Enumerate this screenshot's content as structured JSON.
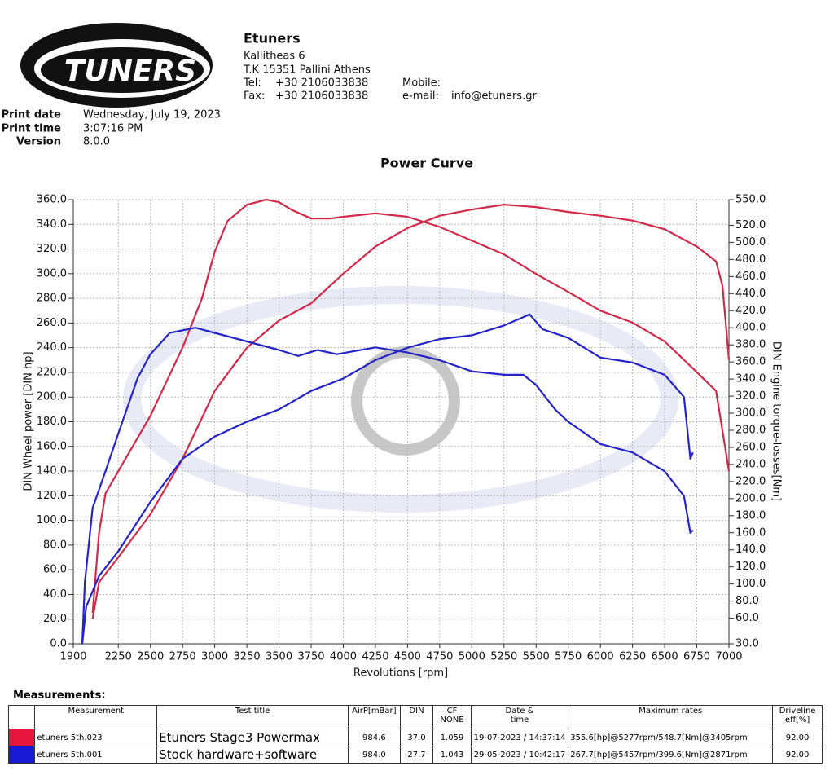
{
  "header": {
    "logo_text": "TUNERS",
    "company": "Etuners",
    "address_1": "Kallitheas 6",
    "address_2": "T.K 15351 Pallini Athens",
    "tel_label": "Tel:",
    "tel": "+30 2106033838",
    "fax_label": "Fax:",
    "fax": "+30 2106033838",
    "mobile_label": "Mobile:",
    "email_label": "e-mail:",
    "email": "info@etuners.gr",
    "print_date_label": "Print date",
    "print_date": "Wednesday, July 19, 2023",
    "print_time_label": "Print time",
    "print_time": "3:07:16 PM",
    "version_label": "Version",
    "version": "8.0.0"
  },
  "chart_data": {
    "type": "line",
    "title": "Power Curve",
    "x_label": "Revolutions [rpm]",
    "y_label": "DIN Wheel power [DIN hp]",
    "y2_label": "DIN Engine torque-losses[Nm]",
    "xlim": [
      1900,
      7000
    ],
    "xticks": [
      1900,
      2250,
      2500,
      2750,
      3000,
      3250,
      3500,
      3750,
      4000,
      4250,
      4500,
      4750,
      5000,
      5250,
      5500,
      5750,
      6000,
      6250,
      6500,
      6750,
      7000
    ],
    "ylim": [
      0,
      360
    ],
    "yticks": [
      {
        "value": 0,
        "label": "0.0"
      },
      {
        "value": 20,
        "label": "20.0"
      },
      {
        "value": 40,
        "label": "40.0"
      },
      {
        "value": 60,
        "label": "60.0"
      },
      {
        "value": 80,
        "label": "80.0"
      },
      {
        "value": 100,
        "label": "100.0"
      },
      {
        "value": 120,
        "label": "120.0"
      },
      {
        "value": 140,
        "label": "140.0"
      },
      {
        "value": 160,
        "label": "160.0"
      },
      {
        "value": 180,
        "label": "180.0"
      },
      {
        "value": 200,
        "label": "200.0"
      },
      {
        "value": 220,
        "label": "220.0"
      },
      {
        "value": 240,
        "label": "240.0"
      },
      {
        "value": 260,
        "label": "260.0"
      },
      {
        "value": 280,
        "label": "280.0"
      },
      {
        "value": 300,
        "label": "300.0"
      },
      {
        "value": 320,
        "label": "320.0"
      },
      {
        "value": 340,
        "label": "340.0"
      },
      {
        "value": 360,
        "label": "360.0"
      }
    ],
    "y2lim": [
      30,
      550
    ],
    "y2ticks": [
      {
        "value": 30,
        "label": "30.0"
      },
      {
        "value": 60,
        "label": "60.0"
      },
      {
        "value": 80,
        "label": "80.0"
      },
      {
        "value": 100,
        "label": "100.0"
      },
      {
        "value": 120,
        "label": "120.0"
      },
      {
        "value": 140,
        "label": "140.0"
      },
      {
        "value": 160,
        "label": "160.0"
      },
      {
        "value": 180,
        "label": "180.0"
      },
      {
        "value": 200,
        "label": "200.0"
      },
      {
        "value": 220,
        "label": "220.0"
      },
      {
        "value": 240,
        "label": "240.0"
      },
      {
        "value": 260,
        "label": "260.0"
      },
      {
        "value": 280,
        "label": "280.0"
      },
      {
        "value": 300,
        "label": "300.0"
      },
      {
        "value": 320,
        "label": "320.0"
      },
      {
        "value": 340,
        "label": "340.0"
      },
      {
        "value": 360,
        "label": "360.0"
      },
      {
        "value": 380,
        "label": "380.0"
      },
      {
        "value": 400,
        "label": "400.0"
      },
      {
        "value": 420,
        "label": "420.0"
      },
      {
        "value": 440,
        "label": "440.0"
      },
      {
        "value": 460,
        "label": "460.0"
      },
      {
        "value": 480,
        "label": "480.0"
      },
      {
        "value": 500,
        "label": "500.0"
      },
      {
        "value": 520,
        "label": "520.0"
      },
      {
        "value": 550,
        "label": "550.0"
      }
    ],
    "grid": true,
    "series": [
      {
        "color": "#d42a4a",
        "axis": "y",
        "x": [
          2050,
          2100,
          2250,
          2500,
          2750,
          3000,
          3250,
          3500,
          3750,
          4000,
          4250,
          4500,
          4750,
          5000,
          5250,
          5500,
          5750,
          6000,
          6250,
          6500,
          6750,
          6900,
          6950,
          7000
        ],
        "values": [
          20,
          50,
          70,
          105,
          150,
          205,
          240,
          262,
          276,
          300,
          322,
          337,
          347,
          352,
          356,
          354,
          350,
          347,
          343,
          336,
          322,
          310,
          290,
          230
        ]
      },
      {
        "color": "#d42a4a",
        "axis": "y2",
        "x": [
          2050,
          2100,
          2150,
          2250,
          2500,
          2750,
          2900,
          3000,
          3100,
          3250,
          3400,
          3500,
          3600,
          3750,
          3900,
          4000,
          4250,
          4500,
          4750,
          5000,
          5250,
          5500,
          5750,
          6000,
          6250,
          6500,
          6750,
          6900,
          7000
        ],
        "values": [
          66,
          160,
          206,
          232,
          297,
          377,
          434,
          489,
          525,
          544,
          550,
          547,
          538,
          528,
          528,
          530,
          534,
          530,
          518,
          502,
          486,
          463,
          442,
          420,
          406,
          384,
          348,
          326,
          232
        ]
      },
      {
        "color": "#2424c8",
        "axis": "y",
        "x": [
          1970,
          2000,
          2100,
          2250,
          2500,
          2750,
          3000,
          3250,
          3500,
          3750,
          4000,
          4250,
          4500,
          4750,
          5000,
          5250,
          5450,
          5550,
          5750,
          6000,
          6250,
          6500,
          6650,
          6700,
          6720
        ],
        "values": [
          0,
          30,
          55,
          75,
          115,
          150,
          168,
          180,
          190,
          205,
          215,
          230,
          240,
          247,
          250,
          258,
          267,
          255,
          248,
          232,
          228,
          218,
          200,
          150,
          155
        ]
      },
      {
        "color": "#2424c8",
        "axis": "y2",
        "x": [
          1970,
          1990,
          2050,
          2150,
          2250,
          2400,
          2500,
          2650,
          2850,
          3000,
          3250,
          3500,
          3650,
          3800,
          3950,
          4250,
          4500,
          4750,
          5000,
          5250,
          5400,
          5500,
          5650,
          5750,
          6000,
          6250,
          6500,
          6650,
          6700,
          6720
        ],
        "values": [
          30,
          102,
          189,
          232,
          276,
          341,
          369,
          394,
          400,
          394,
          384,
          374,
          367,
          374,
          369,
          377,
          371,
          362,
          349,
          345,
          345,
          333,
          304,
          290,
          264,
          254,
          232,
          203,
          160,
          163
        ]
      }
    ]
  },
  "measurements": {
    "title": "Measurements:",
    "columns": [
      "Measurement",
      "Test title",
      "AirP[mBar]",
      "DIN",
      "CF\nNONE",
      "Date &\ntime",
      "Maximum rates",
      "Driveline\neff[%]"
    ],
    "rows": [
      {
        "color": "#e8163c",
        "cells": [
          "etuners 5th.023",
          "Etuners Stage3 Powermax",
          "984.6",
          "37.0",
          "1.059",
          "19-07-2023 / 14:37:14",
          "355.6[hp]@5277rpm/548.7[Nm]@3405rpm",
          "92.00"
        ]
      },
      {
        "color": "#1a1ad6",
        "cells": [
          "etuners 5th.001",
          "Stock hardware+software",
          "984.0",
          "27.7",
          "1.043",
          "29-05-2023 / 10:42:17",
          "267.7[hp]@5457rpm/399.6[Nm]@2871rpm",
          "92.00"
        ]
      }
    ]
  }
}
